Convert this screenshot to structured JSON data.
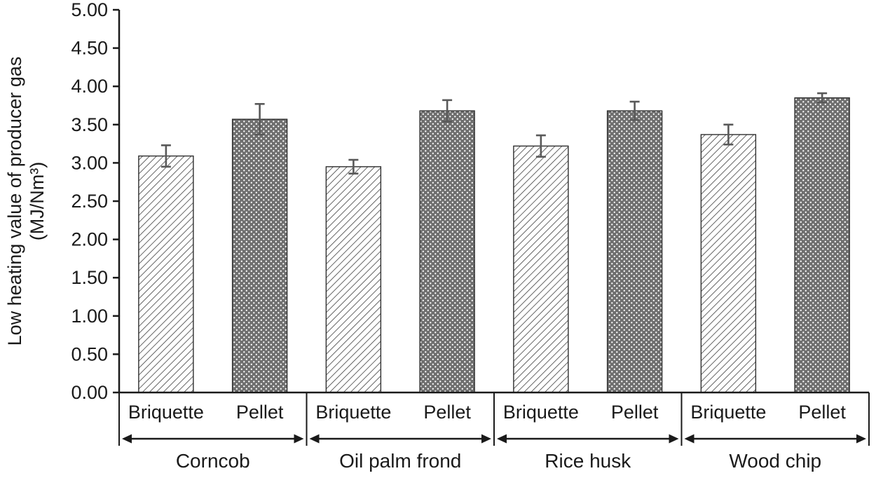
{
  "chart_data": {
    "type": "bar",
    "title": "",
    "xlabel": "",
    "ylabel": "Low heating value of producer gas (MJ/Nm³)",
    "ylabel_lines": [
      "Low heating value of producer gas",
      "(MJ/Nm³)"
    ],
    "ylim": [
      0,
      5
    ],
    "ytick_step": 0.5,
    "ytick_decimals": 2,
    "ytick_labels": [
      "0.00",
      "0.50",
      "1.00",
      "1.50",
      "2.00",
      "2.50",
      "3.00",
      "3.50",
      "4.00",
      "4.50",
      "5.00"
    ],
    "grid": false,
    "legend_position": "none",
    "categories": [
      "Corncob",
      "Oil palm frond",
      "Rice husk",
      "Wood chip"
    ],
    "bar_labels": [
      "Briquette",
      "Pellet"
    ],
    "series": [
      {
        "name": "Briquette",
        "pattern": "diagonal-hatch",
        "values": [
          3.09,
          2.95,
          3.22,
          3.37
        ],
        "errors": [
          0.14,
          0.09,
          0.14,
          0.13
        ]
      },
      {
        "name": "Pellet",
        "pattern": "dot-grid",
        "values": [
          3.57,
          3.68,
          3.68,
          3.85
        ],
        "errors": [
          0.2,
          0.14,
          0.12,
          0.06
        ]
      }
    ],
    "colors": {
      "axis": "#1a1a1a",
      "text": "#1a1a1a",
      "error_bar": "#595959",
      "bar_outline": "#2e2e2e",
      "hatch_line": "#4a4a4a",
      "hatch_background": "#ffffff",
      "dot_background": "#6f6f6f",
      "dot_color": "#ffffff",
      "background": "#ffffff"
    }
  }
}
